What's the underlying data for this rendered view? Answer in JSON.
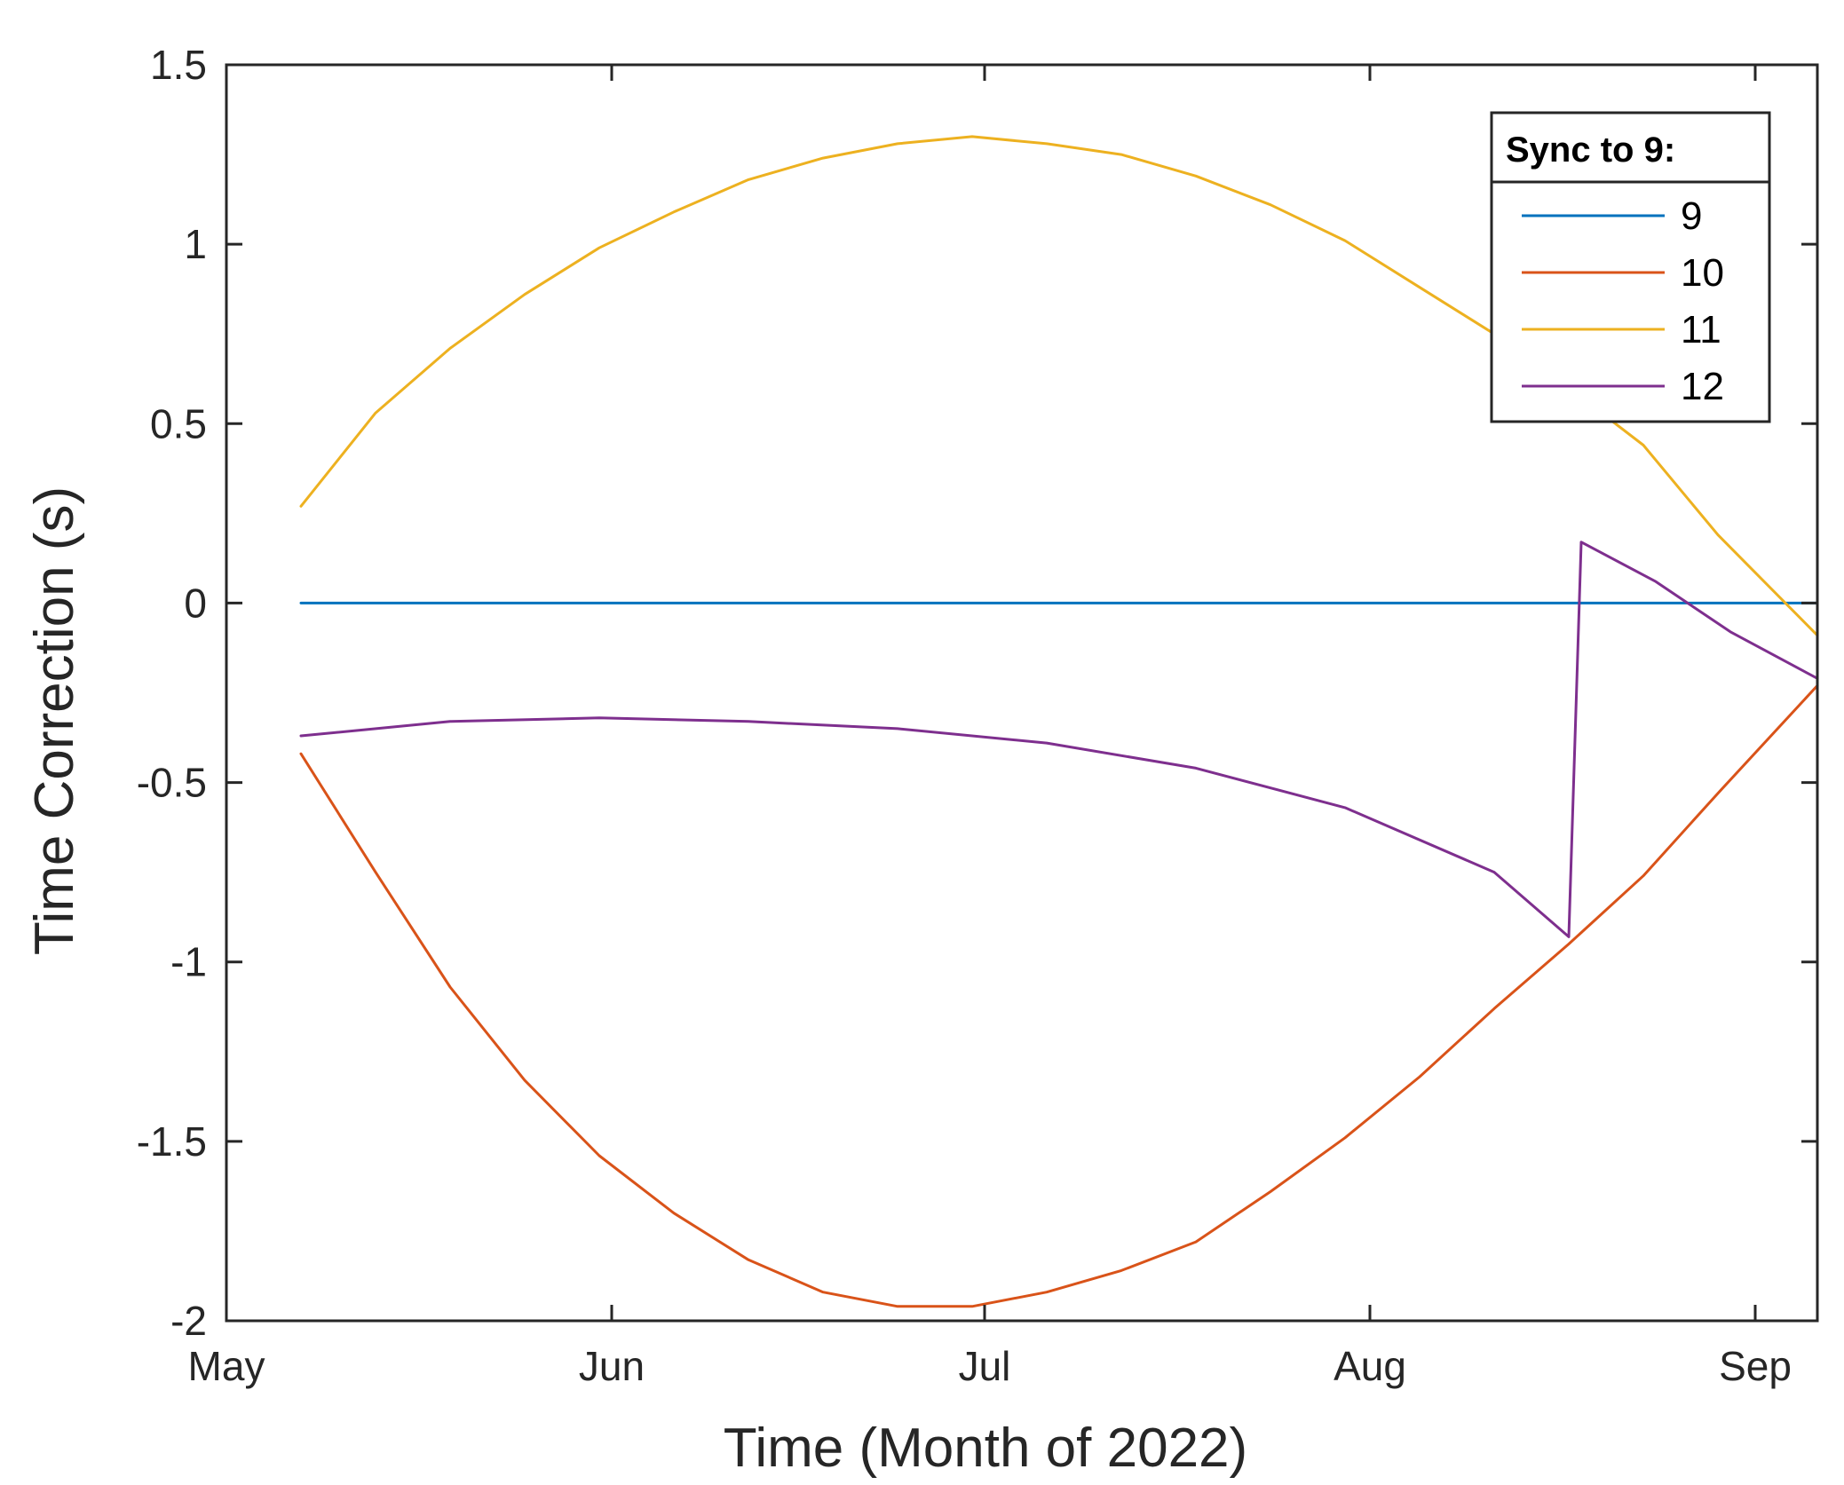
{
  "chart_data": {
    "type": "line",
    "title": "",
    "xlabel": "Time (Month of 2022)",
    "ylabel": "Time Correction (s)",
    "xlim": [
      "2022-05-01",
      "2022-09-06"
    ],
    "ylim": [
      -2,
      1.5
    ],
    "x_ticks": [
      {
        "date": "2022-05-01",
        "label": "May"
      },
      {
        "date": "2022-06-01",
        "label": "Jun"
      },
      {
        "date": "2022-07-01",
        "label": "Jul"
      },
      {
        "date": "2022-08-01",
        "label": "Aug"
      },
      {
        "date": "2022-09-01",
        "label": "Sep"
      }
    ],
    "y_ticks": [
      {
        "value": 1.5,
        "label": "1.5"
      },
      {
        "value": 1,
        "label": "1"
      },
      {
        "value": 0.5,
        "label": "0.5"
      },
      {
        "value": 0,
        "label": "0"
      },
      {
        "value": -0.5,
        "label": "-0.5"
      },
      {
        "value": -1,
        "label": "-1"
      },
      {
        "value": -1.5,
        "label": "-1.5"
      },
      {
        "value": -2,
        "label": "-2"
      }
    ],
    "grid": false,
    "legend": {
      "title": "Sync to 9:",
      "placement": "top-right"
    },
    "series": [
      {
        "name": "9",
        "color": "#0072BD",
        "points": [
          [
            "2022-05-07",
            0
          ],
          [
            "2022-09-06",
            0
          ]
        ]
      },
      {
        "name": "10",
        "color": "#D95319",
        "points": [
          [
            "2022-05-07",
            -0.42
          ],
          [
            "2022-05-13",
            -0.75
          ],
          [
            "2022-05-19",
            -1.07
          ],
          [
            "2022-05-25",
            -1.33
          ],
          [
            "2022-05-31",
            -1.54
          ],
          [
            "2022-06-06",
            -1.7
          ],
          [
            "2022-06-12",
            -1.83
          ],
          [
            "2022-06-18",
            -1.92
          ],
          [
            "2022-06-24",
            -1.96
          ],
          [
            "2022-06-30",
            -1.96
          ],
          [
            "2022-07-06",
            -1.92
          ],
          [
            "2022-07-12",
            -1.86
          ],
          [
            "2022-07-18",
            -1.78
          ],
          [
            "2022-07-24",
            -1.64
          ],
          [
            "2022-07-30",
            -1.49
          ],
          [
            "2022-08-05",
            -1.32
          ],
          [
            "2022-08-11",
            -1.13
          ],
          [
            "2022-08-17",
            -0.95
          ],
          [
            "2022-08-23",
            -0.76
          ],
          [
            "2022-08-29",
            -0.53
          ],
          [
            "2022-09-06",
            -0.23
          ]
        ]
      },
      {
        "name": "11",
        "color": "#EDB120",
        "points": [
          [
            "2022-05-07",
            0.27
          ],
          [
            "2022-05-13",
            0.53
          ],
          [
            "2022-05-19",
            0.71
          ],
          [
            "2022-05-25",
            0.86
          ],
          [
            "2022-05-31",
            0.99
          ],
          [
            "2022-06-06",
            1.09
          ],
          [
            "2022-06-12",
            1.18
          ],
          [
            "2022-06-18",
            1.24
          ],
          [
            "2022-06-24",
            1.28
          ],
          [
            "2022-06-30",
            1.3
          ],
          [
            "2022-07-06",
            1.28
          ],
          [
            "2022-07-12",
            1.25
          ],
          [
            "2022-07-18",
            1.19
          ],
          [
            "2022-07-24",
            1.11
          ],
          [
            "2022-07-30",
            1.01
          ],
          [
            "2022-08-05",
            0.88
          ],
          [
            "2022-08-11",
            0.75
          ],
          [
            "2022-08-17",
            0.6
          ],
          [
            "2022-08-23",
            0.44
          ],
          [
            "2022-08-29",
            0.19
          ],
          [
            "2022-09-06",
            -0.09
          ]
        ]
      },
      {
        "name": "12",
        "color": "#7E2F8E",
        "points": [
          [
            "2022-05-07",
            -0.37
          ],
          [
            "2022-05-19",
            -0.33
          ],
          [
            "2022-05-31",
            -0.32
          ],
          [
            "2022-06-12",
            -0.33
          ],
          [
            "2022-06-24",
            -0.35
          ],
          [
            "2022-07-06",
            -0.39
          ],
          [
            "2022-07-18",
            -0.46
          ],
          [
            "2022-07-30",
            -0.57
          ],
          [
            "2022-08-11",
            -0.75
          ],
          [
            "2022-08-17",
            -0.93
          ],
          [
            "2022-08-18",
            0.17
          ],
          [
            "2022-08-24",
            0.06
          ],
          [
            "2022-08-30",
            -0.08
          ],
          [
            "2022-09-06",
            -0.21
          ]
        ]
      }
    ]
  }
}
